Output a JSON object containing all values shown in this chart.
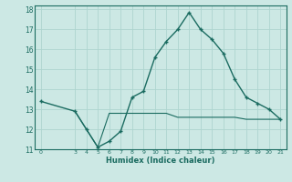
{
  "title": "",
  "xlabel": "Humidex (Indice chaleur)",
  "bg_color": "#cce8e4",
  "grid_color": "#aed4cf",
  "line_color": "#1a6b60",
  "xlim": [
    -0.5,
    21.5
  ],
  "ylim": [
    11,
    18.2
  ],
  "xticks": [
    0,
    3,
    4,
    5,
    6,
    7,
    8,
    9,
    10,
    11,
    12,
    13,
    14,
    15,
    16,
    17,
    18,
    19,
    20,
    21
  ],
  "yticks": [
    11,
    12,
    13,
    14,
    15,
    16,
    17,
    18
  ],
  "line1_x": [
    0,
    3,
    4,
    5,
    6,
    7,
    8,
    9,
    10,
    11,
    12,
    13,
    14,
    15,
    16,
    17,
    18,
    19,
    20,
    21
  ],
  "line1_y": [
    13.4,
    12.9,
    12.0,
    11.1,
    11.4,
    11.9,
    13.6,
    13.9,
    15.6,
    16.4,
    17.0,
    17.85,
    17.0,
    16.5,
    15.8,
    14.5,
    13.6,
    13.3,
    13.0,
    12.5
  ],
  "line2_x": [
    3,
    4,
    5,
    6,
    7,
    8,
    9,
    10,
    11,
    12,
    13,
    14,
    15,
    16,
    17,
    18,
    19,
    20,
    21
  ],
  "line2_y": [
    12.9,
    12.0,
    11.1,
    12.8,
    12.8,
    12.8,
    12.8,
    12.8,
    12.8,
    12.6,
    12.6,
    12.6,
    12.6,
    12.6,
    12.6,
    12.5,
    12.5,
    12.5,
    12.5
  ]
}
